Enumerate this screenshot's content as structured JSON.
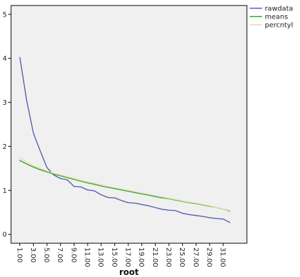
{
  "chart_data": {
    "type": "line",
    "title": "",
    "xlabel": "root",
    "ylabel": "",
    "ylim": [
      -0.2,
      5.2
    ],
    "yticks": [
      0,
      1,
      2,
      3,
      4,
      5
    ],
    "ytick_labels": [
      "0",
      "1",
      "2",
      "3",
      "4",
      "5"
    ],
    "xtick_values": [
      1,
      3,
      5,
      7,
      9,
      11,
      13,
      15,
      17,
      19,
      21,
      23,
      25,
      27,
      29,
      31
    ],
    "xtick_labels": [
      "1.00",
      "3.00",
      "5.00",
      "7.00",
      "9.00",
      "11.00",
      "13.00",
      "15.00",
      "17.00",
      "19.00",
      "21.00",
      "23.00",
      "25.00",
      "27.00",
      "29.00",
      "31.00"
    ],
    "x": [
      1,
      2,
      3,
      4,
      5,
      6,
      7,
      8,
      9,
      10,
      11,
      12,
      13,
      14,
      15,
      16,
      17,
      18,
      19,
      20,
      21,
      22,
      23,
      24,
      25,
      26,
      27,
      28,
      29,
      30,
      31,
      32
    ],
    "grid": false,
    "legend_position": "top-right",
    "plot_background": "#f0f0f0",
    "series": [
      {
        "name": "rawdata",
        "color": "#5560a8",
        "values": [
          4.02,
          3.05,
          2.3,
          1.9,
          1.52,
          1.35,
          1.27,
          1.24,
          1.09,
          1.08,
          1.01,
          0.99,
          0.9,
          0.84,
          0.83,
          0.77,
          0.72,
          0.71,
          0.68,
          0.65,
          0.61,
          0.57,
          0.55,
          0.54,
          0.48,
          0.45,
          0.43,
          0.41,
          0.38,
          0.36,
          0.35,
          0.27
        ]
      },
      {
        "name": "means",
        "color": "#3c9e3c",
        "values": [
          1.68,
          1.6,
          1.53,
          1.47,
          1.42,
          1.37,
          1.33,
          1.29,
          1.25,
          1.21,
          1.17,
          1.14,
          1.1,
          1.07,
          1.04,
          1.01,
          0.98,
          0.95,
          0.92,
          0.89,
          0.86,
          0.83,
          0.81,
          0.78,
          0.75,
          0.72,
          0.7,
          0.67,
          0.64,
          0.61,
          0.57,
          0.53
        ]
      },
      {
        "name": "percntyl",
        "color": "#d9e0a0",
        "values": [
          1.74,
          1.64,
          1.56,
          1.5,
          1.44,
          1.39,
          1.35,
          1.31,
          1.27,
          1.23,
          1.19,
          1.16,
          1.12,
          1.09,
          1.06,
          1.03,
          1.0,
          0.97,
          0.94,
          0.91,
          0.88,
          0.85,
          0.82,
          0.79,
          0.76,
          0.73,
          0.71,
          0.68,
          0.65,
          0.61,
          0.57,
          0.52
        ]
      }
    ]
  }
}
